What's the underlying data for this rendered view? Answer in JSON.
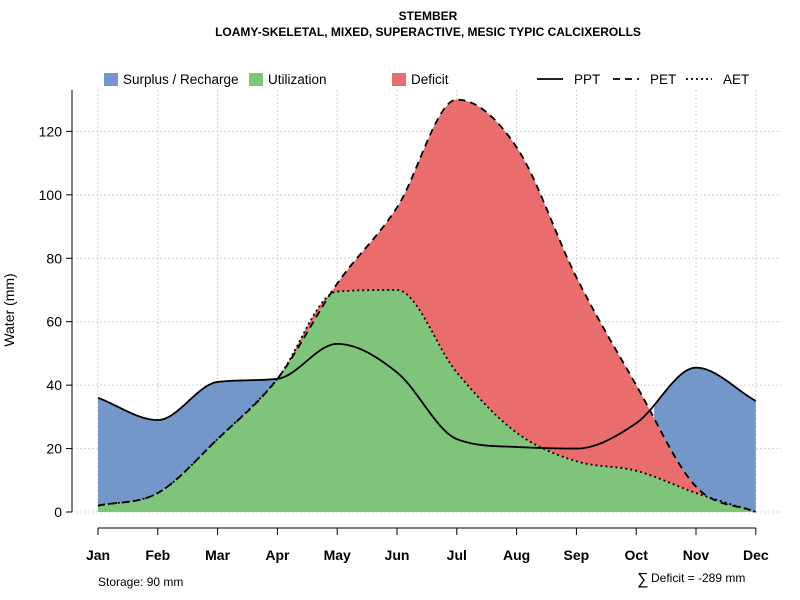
{
  "chart_data": {
    "type": "area",
    "title": "STEMBER",
    "subtitle": "LOAMY-SKELETAL, MIXED, SUPERACTIVE, MESIC TYPIC CALCIXEROLLS",
    "ylabel": "Water (mm)",
    "xlabel": "",
    "categories": [
      "Jan",
      "Feb",
      "Mar",
      "Apr",
      "May",
      "Jun",
      "Jul",
      "Aug",
      "Sep",
      "Oct",
      "Nov",
      "Dec"
    ],
    "ylim": [
      0,
      130
    ],
    "yticks": [
      0,
      20,
      40,
      60,
      80,
      100,
      120
    ],
    "grid": true,
    "series": [
      {
        "name": "PPT",
        "line": "solid",
        "values": [
          36,
          29,
          41,
          42,
          53,
          44,
          23,
          20.5,
          20,
          28,
          45.5,
          35
        ]
      },
      {
        "name": "PET",
        "line": "dashed",
        "values": [
          2,
          6,
          23,
          42,
          72,
          96,
          130,
          115,
          74,
          40,
          8,
          0
        ]
      },
      {
        "name": "AET",
        "line": "dotted",
        "values": [
          2,
          6,
          23,
          42,
          69.5,
          70,
          44,
          25,
          16,
          13,
          6,
          0
        ]
      }
    ],
    "fills": [
      {
        "name": "Surplus / Recharge",
        "color": "#7397c8"
      },
      {
        "name": "Utilization",
        "color": "#7fc47b"
      },
      {
        "name": "Deficit",
        "color": "#ea6d6e"
      }
    ],
    "legend": {
      "position": "top",
      "entries": [
        {
          "label": "Surplus / Recharge",
          "kind": "fill",
          "color": "#7397c8"
        },
        {
          "label": "Utilization",
          "kind": "fill",
          "color": "#7fc47b"
        },
        {
          "label": "Deficit",
          "kind": "fill",
          "color": "#ea6d6e"
        },
        {
          "label": "PPT",
          "kind": "line",
          "dash": "solid"
        },
        {
          "label": "PET",
          "kind": "line",
          "dash": "dashed"
        },
        {
          "label": "AET",
          "kind": "line",
          "dash": "dotted"
        }
      ]
    },
    "annotations": {
      "storage": "Storage: 90 mm",
      "deficit_symbol": "∑",
      "deficit": "Deficit = -289 mm"
    }
  }
}
